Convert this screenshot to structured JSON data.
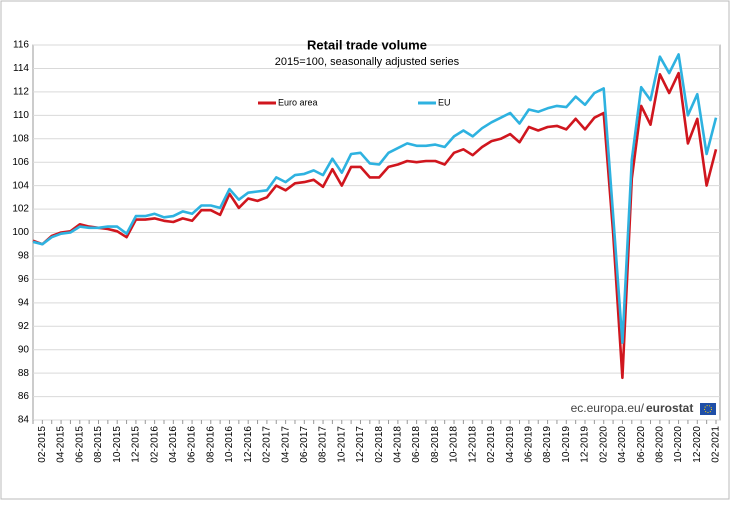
{
  "chart_data": {
    "type": "line",
    "title": "Retail trade volume",
    "subtitle": "2015=100, seasonally adjusted series",
    "source_url": "ec.europa.eu/",
    "source_brand": "eurostat",
    "categories": [
      null,
      "02-2015",
      null,
      "04-2015",
      null,
      "06-2015",
      null,
      "08-2015",
      null,
      "10-2015",
      null,
      "12-2015",
      null,
      "02-2016",
      null,
      "04-2016",
      null,
      "06-2016",
      null,
      "08-2016",
      null,
      "10-2016",
      null,
      "12-2016",
      null,
      "02-2017",
      null,
      "04-2017",
      null,
      "06-2017",
      null,
      "08-2017",
      null,
      "10-2017",
      null,
      "12-2017",
      null,
      "02-2018",
      null,
      "04-2018",
      null,
      "06-2018",
      null,
      "08-2018",
      null,
      "10-2018",
      null,
      "12-2018",
      null,
      "02-2019",
      null,
      "04-2019",
      null,
      "06-2019",
      null,
      "08-2019",
      null,
      "10-2019",
      null,
      "12-2019",
      null,
      "02-2020",
      null,
      "04-2020",
      null,
      "06-2020",
      null,
      "08-2020",
      null,
      "10-2020",
      null,
      "12-2020",
      null,
      "02-2021"
    ],
    "series": [
      {
        "name": "Euro area",
        "color": "#d0161e",
        "values": [
          99.3,
          99.0,
          99.7,
          100.0,
          100.1,
          100.7,
          100.5,
          100.4,
          100.3,
          100.1,
          99.6,
          101.1,
          101.1,
          101.2,
          101.0,
          100.9,
          101.2,
          101.0,
          101.9,
          101.9,
          101.5,
          103.3,
          102.1,
          102.9,
          102.7,
          103.0,
          104.0,
          103.6,
          104.2,
          104.3,
          104.5,
          103.9,
          105.4,
          104.0,
          105.6,
          105.6,
          104.7,
          104.7,
          105.6,
          105.8,
          106.1,
          106.0,
          106.1,
          106.1,
          105.8,
          106.8,
          107.1,
          106.6,
          107.3,
          107.8,
          108.0,
          108.4,
          107.7,
          109.0,
          108.7,
          109.0,
          109.1,
          108.8,
          109.7,
          108.8,
          109.8,
          110.2,
          100.0,
          87.6,
          104.6,
          110.8,
          109.2,
          113.5,
          111.9,
          113.6,
          107.6,
          109.7,
          104.0,
          107.1
        ]
      },
      {
        "name": "EU",
        "color": "#2eb2e0",
        "values": [
          99.2,
          99.0,
          99.6,
          99.9,
          100.0,
          100.5,
          100.4,
          100.4,
          100.5,
          100.5,
          99.9,
          101.4,
          101.4,
          101.6,
          101.3,
          101.4,
          101.8,
          101.6,
          102.3,
          102.3,
          102.1,
          103.7,
          102.8,
          103.4,
          103.5,
          103.6,
          104.7,
          104.3,
          104.9,
          105.0,
          105.3,
          104.9,
          106.3,
          105.1,
          106.7,
          106.8,
          105.9,
          105.8,
          106.8,
          107.2,
          107.6,
          107.4,
          107.4,
          107.5,
          107.3,
          108.2,
          108.7,
          108.2,
          108.9,
          109.4,
          109.8,
          110.2,
          109.3,
          110.5,
          110.3,
          110.6,
          110.8,
          110.7,
          111.6,
          110.9,
          111.9,
          112.3,
          101.5,
          90.6,
          106.2,
          112.4,
          111.3,
          115.0,
          113.6,
          115.2,
          110.0,
          111.8,
          106.7,
          109.8
        ]
      }
    ],
    "ylim": [
      84,
      116
    ],
    "yticks": [
      84,
      86,
      88,
      90,
      92,
      94,
      96,
      98,
      100,
      102,
      104,
      106,
      108,
      110,
      112,
      114,
      116
    ],
    "grid": true
  }
}
